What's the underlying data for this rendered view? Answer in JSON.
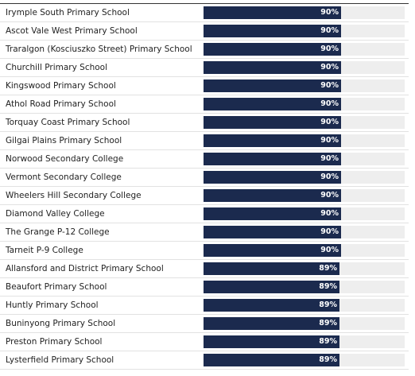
{
  "chart_data": {
    "type": "bar",
    "orientation": "horizontal",
    "colors": {
      "bar": "#1b2a4e",
      "track": "#eeeeee",
      "value_text": "#ffffff",
      "label_text": "#222222"
    },
    "xlim": [
      0,
      100
    ],
    "rows": [
      {
        "label": "Irymple South Primary School",
        "value": 90,
        "value_label": "90%"
      },
      {
        "label": "Ascot Vale West Primary School",
        "value": 90,
        "value_label": "90%"
      },
      {
        "label": "Traralgon (Kosciuszko Street) Primary School",
        "value": 90,
        "value_label": "90%"
      },
      {
        "label": "Churchill Primary School",
        "value": 90,
        "value_label": "90%"
      },
      {
        "label": "Kingswood Primary School",
        "value": 90,
        "value_label": "90%"
      },
      {
        "label": "Athol Road Primary School",
        "value": 90,
        "value_label": "90%"
      },
      {
        "label": "Torquay Coast Primary School",
        "value": 90,
        "value_label": "90%"
      },
      {
        "label": "Gilgai Plains Primary School",
        "value": 90,
        "value_label": "90%"
      },
      {
        "label": "Norwood Secondary College",
        "value": 90,
        "value_label": "90%"
      },
      {
        "label": "Vermont Secondary College",
        "value": 90,
        "value_label": "90%"
      },
      {
        "label": "Wheelers Hill Secondary College",
        "value": 90,
        "value_label": "90%"
      },
      {
        "label": "Diamond Valley College",
        "value": 90,
        "value_label": "90%"
      },
      {
        "label": "The Grange P-12 College",
        "value": 90,
        "value_label": "90%"
      },
      {
        "label": "Tarneit P-9 College",
        "value": 90,
        "value_label": "90%"
      },
      {
        "label": "Allansford and District Primary School",
        "value": 89,
        "value_label": "89%"
      },
      {
        "label": "Beaufort Primary School",
        "value": 89,
        "value_label": "89%"
      },
      {
        "label": "Huntly Primary School",
        "value": 89,
        "value_label": "89%"
      },
      {
        "label": "Buninyong Primary School",
        "value": 89,
        "value_label": "89%"
      },
      {
        "label": "Preston Primary School",
        "value": 89,
        "value_label": "89%"
      },
      {
        "label": "Lysterfield Primary School",
        "value": 89,
        "value_label": "89%"
      }
    ]
  }
}
